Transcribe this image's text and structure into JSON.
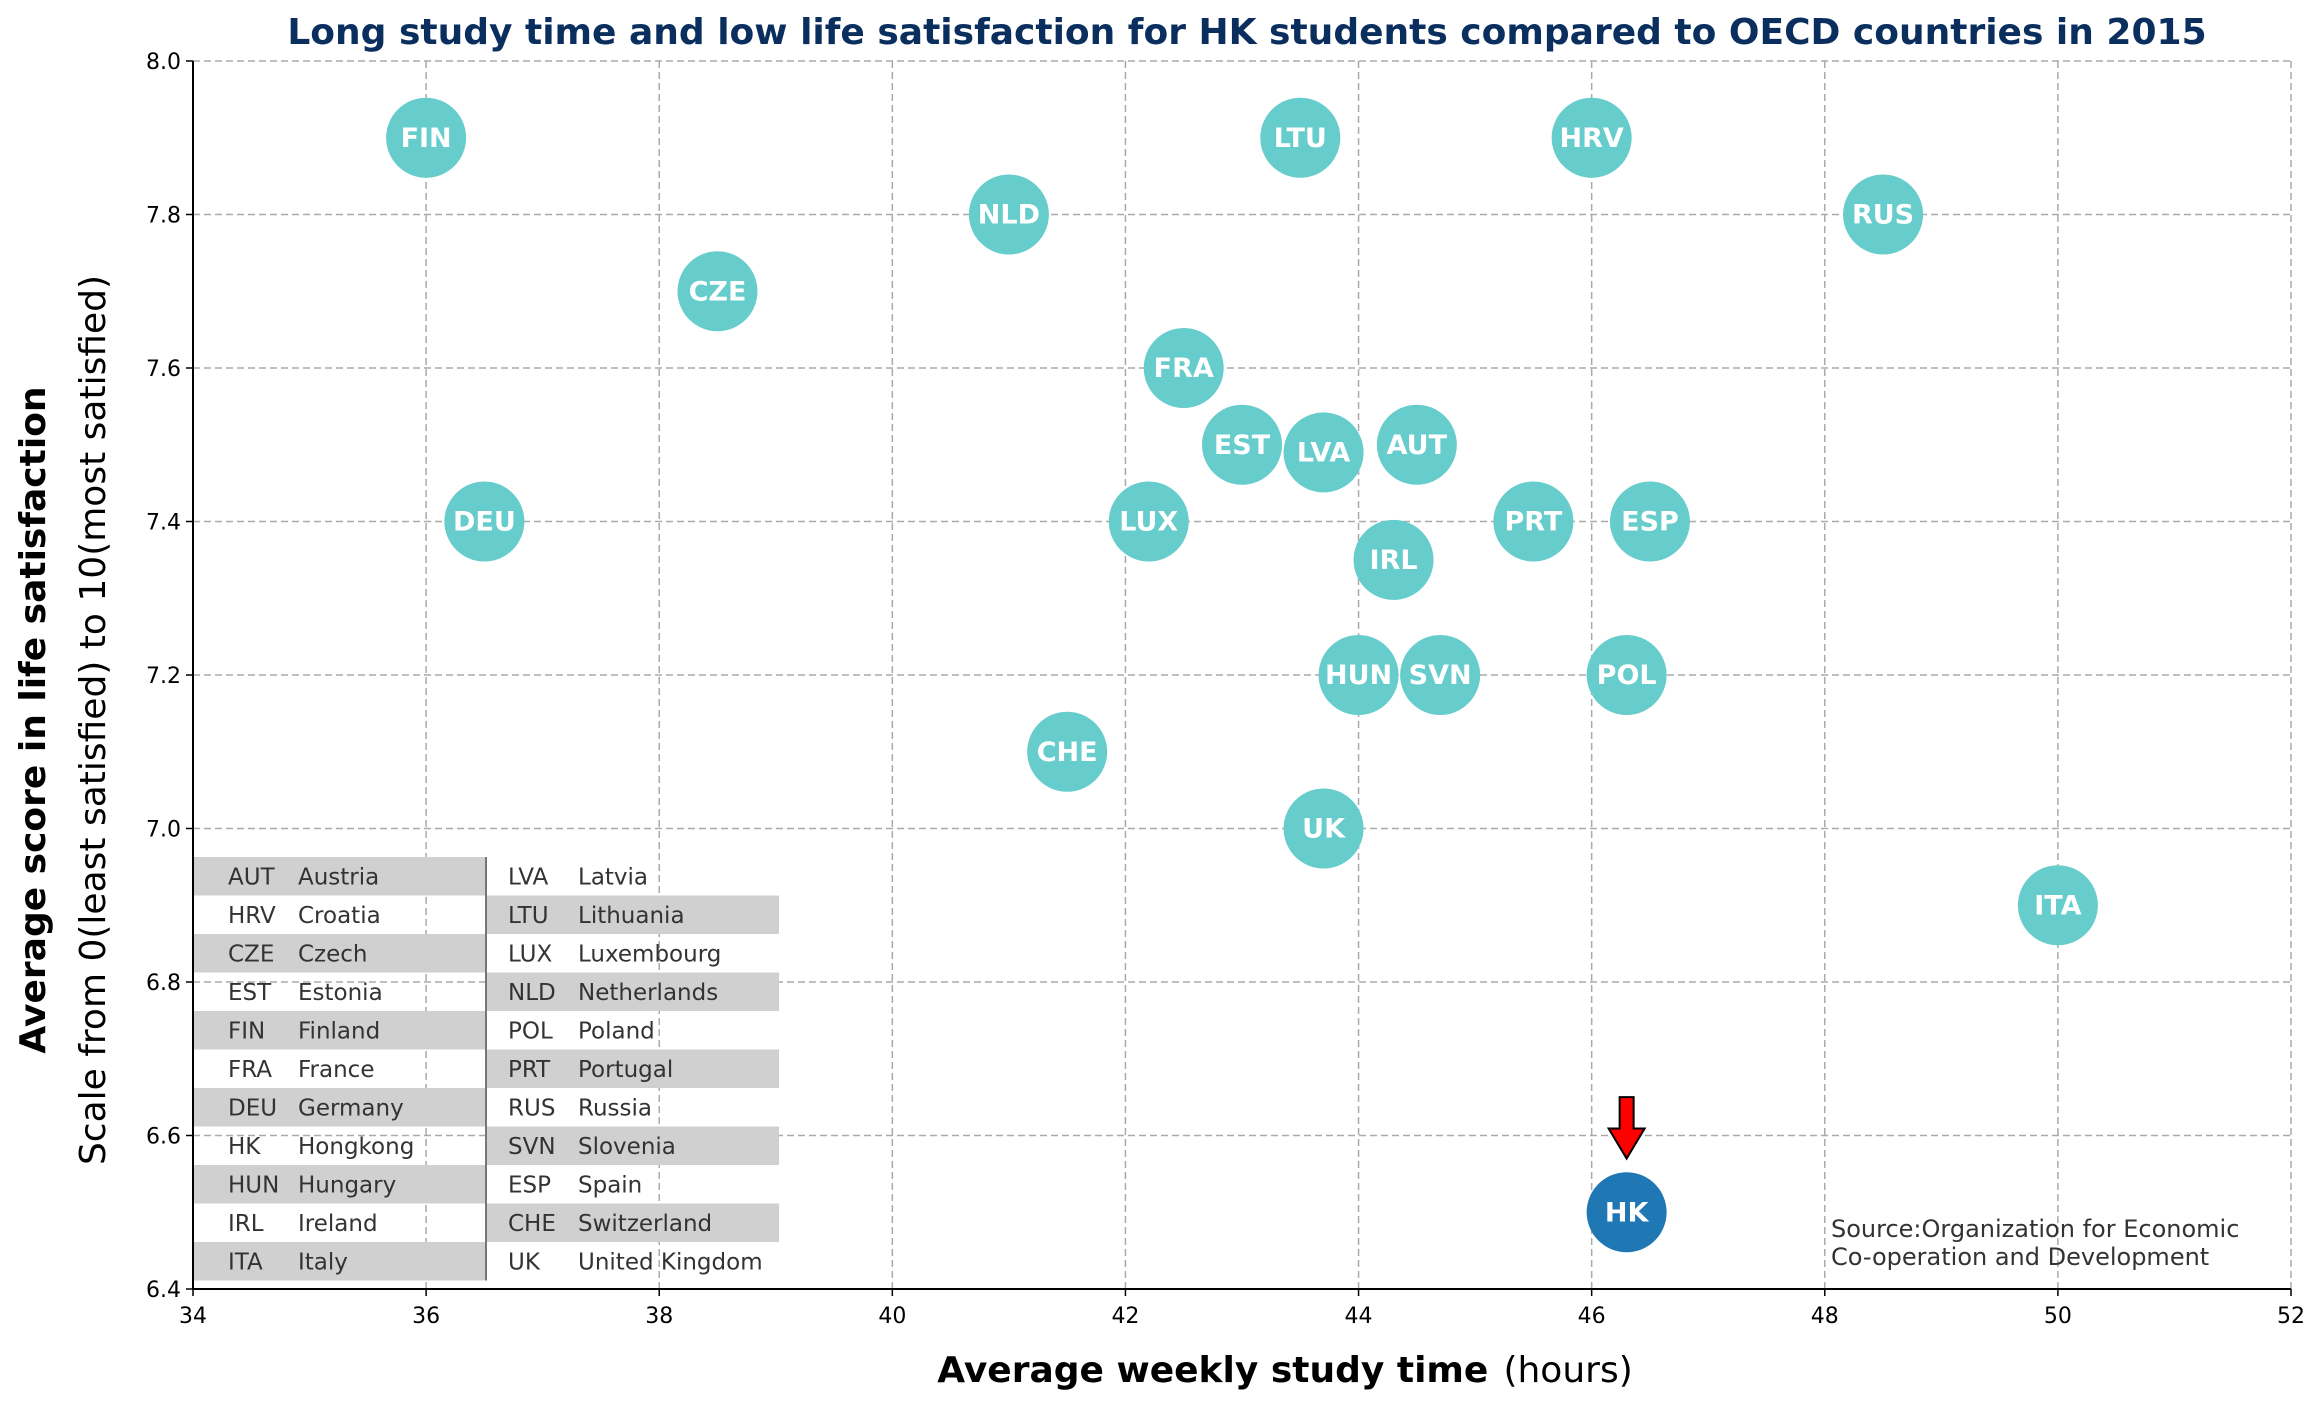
{
  "chart_data": {
    "type": "scatter",
    "title": "Long study time and low life satisfaction for HK students compared to OECD countries in 2015",
    "xlabel": "Average weekly study time",
    "xlabel_unit": "(hours)",
    "ylabel": "Average score in life satisfaction",
    "ylabel_sub": "Scale from 0(least satisfied) to 10(most satisfied)",
    "xlim": [
      34,
      52
    ],
    "ylim": [
      6.4,
      8.0
    ],
    "xticks": [
      34,
      36,
      38,
      40,
      42,
      44,
      46,
      48,
      50,
      52
    ],
    "yticks": [
      6.4,
      6.6,
      6.8,
      7.0,
      7.2,
      7.4,
      7.6,
      7.8,
      8.0
    ],
    "grid": true,
    "colors": {
      "oecd": "#66cccc",
      "highlight": "#1f77b4",
      "arrow": "#ff0000",
      "title": "#0a2f5f"
    },
    "points": [
      {
        "label": "FIN",
        "x": 36.0,
        "y": 7.9
      },
      {
        "label": "LTU",
        "x": 43.5,
        "y": 7.9
      },
      {
        "label": "HRV",
        "x": 46.0,
        "y": 7.9
      },
      {
        "label": "NLD",
        "x": 41.0,
        "y": 7.8
      },
      {
        "label": "RUS",
        "x": 48.5,
        "y": 7.8
      },
      {
        "label": "CZE",
        "x": 38.5,
        "y": 7.7
      },
      {
        "label": "FRA",
        "x": 42.5,
        "y": 7.6
      },
      {
        "label": "EST",
        "x": 43.0,
        "y": 7.5
      },
      {
        "label": "LVA",
        "x": 43.7,
        "y": 7.49
      },
      {
        "label": "AUT",
        "x": 44.5,
        "y": 7.5
      },
      {
        "label": "DEU",
        "x": 36.5,
        "y": 7.4
      },
      {
        "label": "LUX",
        "x": 42.2,
        "y": 7.4
      },
      {
        "label": "PRT",
        "x": 45.5,
        "y": 7.4
      },
      {
        "label": "ESP",
        "x": 46.5,
        "y": 7.4
      },
      {
        "label": "IRL",
        "x": 44.3,
        "y": 7.35
      },
      {
        "label": "HUN",
        "x": 44.0,
        "y": 7.2
      },
      {
        "label": "SVN",
        "x": 44.7,
        "y": 7.2
      },
      {
        "label": "POL",
        "x": 46.3,
        "y": 7.2
      },
      {
        "label": "CHE",
        "x": 41.5,
        "y": 7.1
      },
      {
        "label": "UK",
        "x": 43.7,
        "y": 7.0
      },
      {
        "label": "ITA",
        "x": 50.0,
        "y": 6.9
      },
      {
        "label": "HK",
        "x": 46.3,
        "y": 6.5,
        "highlight": true
      }
    ],
    "arrow": {
      "x": 46.3,
      "y_from": 6.65,
      "y_to": 6.57
    },
    "legend": {
      "placement": "lower-left",
      "columns": [
        [
          {
            "code": "AUT",
            "name": "Austria"
          },
          {
            "code": "HRV",
            "name": "Croatia"
          },
          {
            "code": "CZE",
            "name": "Czech"
          },
          {
            "code": "EST",
            "name": "Estonia"
          },
          {
            "code": "FIN",
            "name": "Finland"
          },
          {
            "code": "FRA",
            "name": "France"
          },
          {
            "code": "DEU",
            "name": "Germany"
          },
          {
            "code": "HK",
            "name": "Hongkong"
          },
          {
            "code": "HUN",
            "name": "Hungary"
          },
          {
            "code": "IRL",
            "name": "Ireland"
          },
          {
            "code": "ITA",
            "name": "Italy"
          }
        ],
        [
          {
            "code": "LVA",
            "name": "Latvia"
          },
          {
            "code": "LTU",
            "name": "Lithuania"
          },
          {
            "code": "LUX",
            "name": "Luxembourg"
          },
          {
            "code": "NLD",
            "name": "Netherlands"
          },
          {
            "code": "POL",
            "name": "Poland"
          },
          {
            "code": "PRT",
            "name": "Portugal"
          },
          {
            "code": "RUS",
            "name": "Russia"
          },
          {
            "code": "SVN",
            "name": "Slovenia"
          },
          {
            "code": "ESP",
            "name": "Spain"
          },
          {
            "code": "CHE",
            "name": "Switzerland"
          },
          {
            "code": "UK",
            "name": "United Kingdom"
          }
        ]
      ]
    },
    "source": [
      "Source:Organization for Economic",
      "Co-operation and Development"
    ]
  }
}
